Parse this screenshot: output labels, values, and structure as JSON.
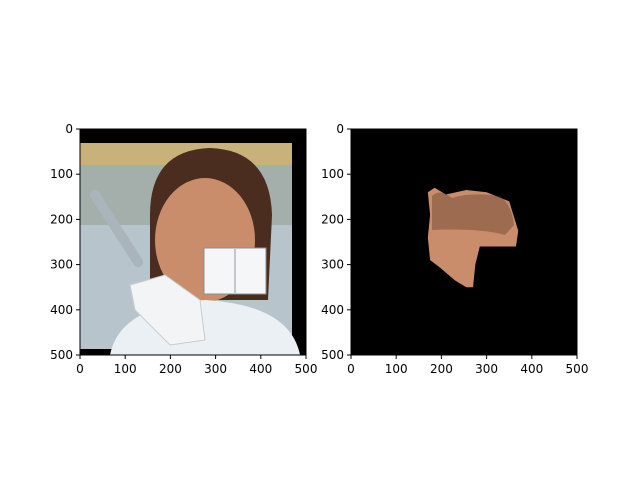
{
  "chart_data": [
    {
      "type": "image",
      "xlim": [
        0,
        500
      ],
      "ylim": [
        500,
        0
      ],
      "xticks": [
        0,
        100,
        200,
        300,
        400,
        500
      ],
      "yticks": [
        0,
        100,
        200,
        300,
        400,
        500
      ],
      "xlabel": "",
      "ylabel": "",
      "title": "",
      "content": "photo",
      "image_extent_x": [
        0,
        470
      ],
      "border_color": "#000000",
      "occluder_region": {
        "x": [
          275,
          410
        ],
        "y": [
          260,
          365
        ]
      }
    },
    {
      "type": "image",
      "xlim": [
        0,
        500
      ],
      "ylim": [
        500,
        0
      ],
      "xticks": [
        0,
        100,
        200,
        300,
        400,
        500
      ],
      "yticks": [
        0,
        100,
        200,
        300,
        400,
        500
      ],
      "xlabel": "",
      "ylabel": "",
      "title": "",
      "content": "masked-face",
      "background_color": "#000000",
      "visible_region": [
        [
          170,
          140
        ],
        [
          185,
          130
        ],
        [
          210,
          145
        ],
        [
          255,
          135
        ],
        [
          300,
          140
        ],
        [
          350,
          160
        ],
        [
          370,
          225
        ],
        [
          365,
          260
        ],
        [
          285,
          260
        ],
        [
          275,
          300
        ],
        [
          270,
          350
        ],
        [
          255,
          350
        ],
        [
          230,
          335
        ],
        [
          195,
          305
        ],
        [
          175,
          290
        ],
        [
          170,
          240
        ],
        [
          175,
          190
        ]
      ]
    }
  ],
  "colors": {
    "frame": "#000000",
    "photo_bg": "#b8c4cc",
    "wall": "#c9b27a",
    "hair": "#4a2d1e",
    "skin": "#c98d6c",
    "coat": "#eaf0f3",
    "book": "#f4f6f8"
  }
}
